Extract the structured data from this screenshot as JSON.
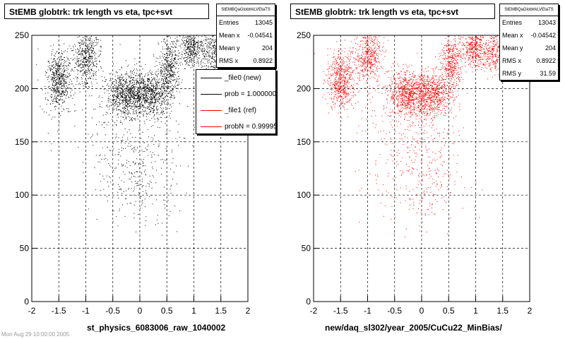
{
  "panels": [
    {
      "title": "StEMB globtrk: trk length vs eta, tpc+svt",
      "stats": {
        "name": "StEMBQaGlobtrkLVEtaTS",
        "rows": [
          {
            "label": "Entries",
            "value": "13045"
          },
          {
            "label": "Mean x",
            "value": "-0.04541"
          },
          {
            "label": "Mean y",
            "value": "204"
          },
          {
            "label": "RMS x",
            "value": "0.8922"
          }
        ]
      },
      "xlabel": "st_physics_6083006_raw_1040002",
      "color": "#000000",
      "legend": [
        {
          "label": "_file0 (new)",
          "color": "#000000"
        },
        {
          "label": "prob = 1.000000",
          "color": "#000000"
        },
        {
          "label": "_file1 (ref)",
          "color": "#ff0000"
        },
        {
          "label": "probN = 0.999953",
          "color": "#ff0000"
        }
      ]
    },
    {
      "title": "StEMB globtrk: trk length vs eta, tpc+svt",
      "stats": {
        "name": "StEMBQaGlobtrkLVEtaTS",
        "rows": [
          {
            "label": "Entries",
            "value": "13043"
          },
          {
            "label": "Mean x",
            "value": "-0.04542"
          },
          {
            "label": "Mean y",
            "value": "204"
          },
          {
            "label": "RMS x",
            "value": "0.8922"
          },
          {
            "label": "RMS y",
            "value": "31.59"
          }
        ]
      },
      "xlabel": "new/daq_sl302/year_2005/CuCu22_MinBias/",
      "color": "#ff0000"
    }
  ],
  "footer_fragment": "Mon Aug 29 10:00:00 2005",
  "chart_data": [
    {
      "type": "scatter",
      "title": "StEMB globtrk: trk length vs eta, tpc+svt",
      "xlabel": "st_physics_6083006_raw_1040002",
      "ylabel": "",
      "xlim": [
        -2,
        2
      ],
      "ylim": [
        0,
        250
      ],
      "xticks": [
        -2,
        -1.5,
        -1,
        -0.5,
        0,
        0.5,
        1,
        1.5,
        2
      ],
      "yticks": [
        0,
        50,
        100,
        150,
        200,
        250
      ],
      "grid": true,
      "entries": 13045,
      "series": [
        {
          "name": "_file0 (new)",
          "color": "#000000",
          "clusters": [
            {
              "x": -1.5,
              "y": 208,
              "sx": 0.12,
              "sy": 14,
              "w": 1.2
            },
            {
              "x": -1.0,
              "y": 230,
              "sx": 0.12,
              "sy": 14,
              "w": 1.0
            },
            {
              "x": -0.25,
              "y": 195,
              "sx": 0.18,
              "sy": 10,
              "w": 1.6
            },
            {
              "x": 0.2,
              "y": 195,
              "sx": 0.18,
              "sy": 10,
              "w": 1.4
            },
            {
              "x": 0.55,
              "y": 220,
              "sx": 0.1,
              "sy": 14,
              "w": 0.9
            },
            {
              "x": 0.95,
              "y": 238,
              "sx": 0.1,
              "sy": 8,
              "w": 0.7
            },
            {
              "x": 1.35,
              "y": 235,
              "sx": 0.15,
              "sy": 10,
              "w": 0.8
            },
            {
              "x": 0.0,
              "y": 120,
              "sx": 0.35,
              "sy": 30,
              "w": 0.6
            },
            {
              "x": -0.3,
              "y": 170,
              "sx": 0.5,
              "sy": 30,
              "w": 0.4
            }
          ]
        }
      ]
    },
    {
      "type": "scatter",
      "title": "StEMB globtrk: trk length vs eta, tpc+svt",
      "xlabel": "new/daq_sl302/year_2005/CuCu22_MinBias/",
      "ylabel": "",
      "xlim": [
        -2,
        2
      ],
      "ylim": [
        0,
        250
      ],
      "xticks": [
        -2,
        -1.5,
        -1,
        -0.5,
        0,
        0.5,
        1,
        1.5,
        2
      ],
      "yticks": [
        0,
        50,
        100,
        150,
        200,
        250
      ],
      "grid": true,
      "entries": 13043,
      "series": [
        {
          "name": "_file1 (ref)",
          "color": "#ff0000",
          "clusters": [
            {
              "x": -1.5,
              "y": 208,
              "sx": 0.12,
              "sy": 14,
              "w": 1.2
            },
            {
              "x": -1.0,
              "y": 232,
              "sx": 0.13,
              "sy": 14,
              "w": 1.1
            },
            {
              "x": -0.25,
              "y": 195,
              "sx": 0.18,
              "sy": 10,
              "w": 1.6
            },
            {
              "x": 0.2,
              "y": 195,
              "sx": 0.18,
              "sy": 10,
              "w": 1.4
            },
            {
              "x": 0.55,
              "y": 225,
              "sx": 0.1,
              "sy": 14,
              "w": 0.9
            },
            {
              "x": 0.95,
              "y": 238,
              "sx": 0.1,
              "sy": 8,
              "w": 0.7
            },
            {
              "x": 1.35,
              "y": 235,
              "sx": 0.15,
              "sy": 10,
              "w": 0.8
            },
            {
              "x": 0.0,
              "y": 120,
              "sx": 0.35,
              "sy": 30,
              "w": 0.6
            },
            {
              "x": -0.3,
              "y": 170,
              "sx": 0.5,
              "sy": 30,
              "w": 0.4
            }
          ]
        }
      ]
    }
  ]
}
